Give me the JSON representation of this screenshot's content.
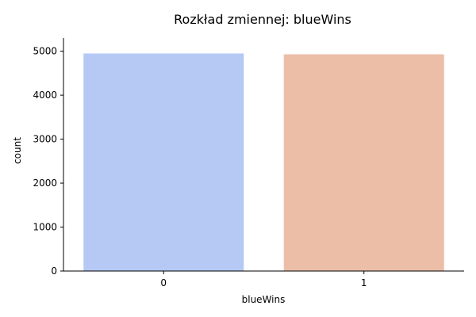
{
  "chart_data": {
    "type": "bar",
    "title": "Rozkład zmiennej: blueWins",
    "xlabel": "blueWins",
    "ylabel": "count",
    "categories": [
      "0",
      "1"
    ],
    "values": [
      4949,
      4930
    ],
    "colors": [
      "#b5c9f4",
      "#ecbea8"
    ],
    "ylim": [
      0,
      5300
    ],
    "yticks": [
      0,
      1000,
      2000,
      3000,
      4000,
      5000
    ],
    "ytick_labels": [
      "0",
      "1000",
      "2000",
      "3000",
      "4000",
      "5000"
    ],
    "grid": false,
    "legend": false
  }
}
